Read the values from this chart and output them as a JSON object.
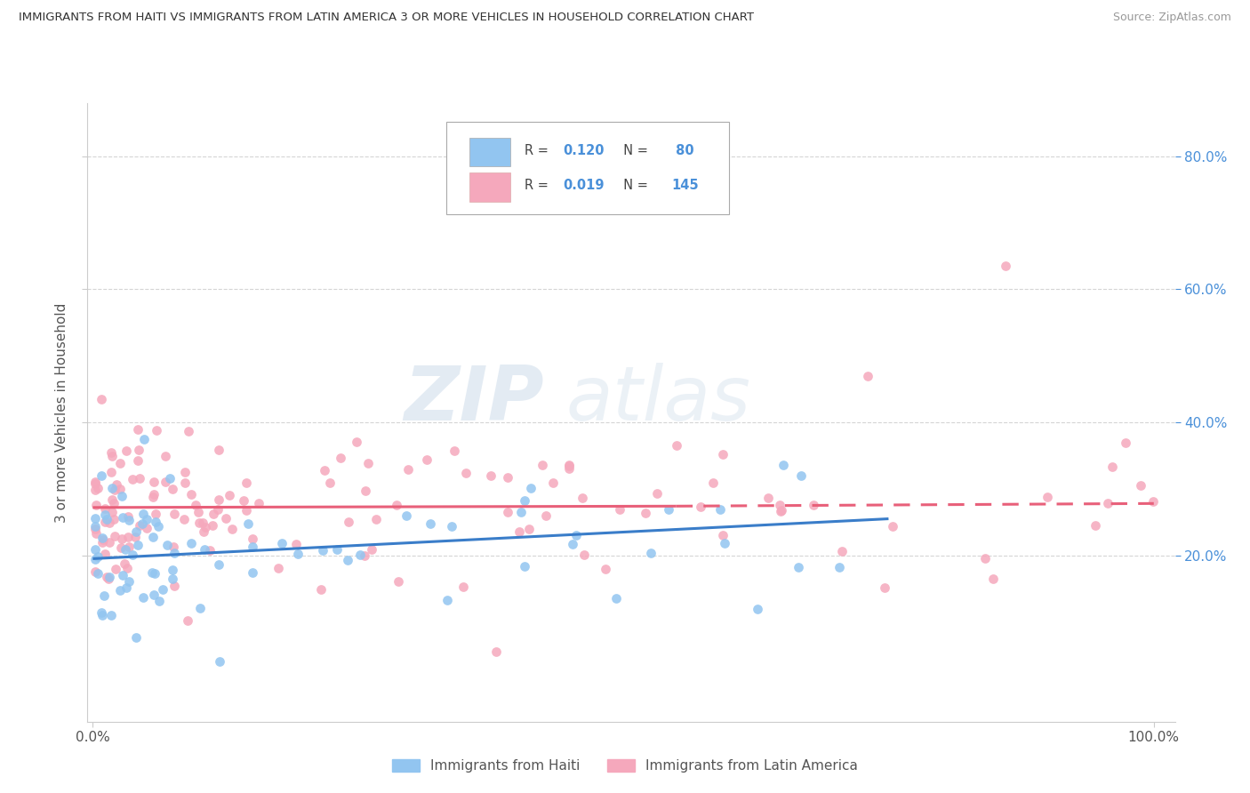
{
  "title": "IMMIGRANTS FROM HAITI VS IMMIGRANTS FROM LATIN AMERICA 3 OR MORE VEHICLES IN HOUSEHOLD CORRELATION CHART",
  "source": "Source: ZipAtlas.com",
  "ylabel": "3 or more Vehicles in Household",
  "xlim": [
    -0.005,
    1.02
  ],
  "ylim": [
    -0.05,
    0.88
  ],
  "ytick_positions": [
    0.2,
    0.4,
    0.6,
    0.8
  ],
  "ytick_labels": [
    "20.0%",
    "40.0%",
    "60.0%",
    "80.0%"
  ],
  "legend1_R": "0.120",
  "legend1_N": "80",
  "legend2_R": "0.019",
  "legend2_N": "145",
  "color_haiti": "#92C5F0",
  "color_latin": "#F5A8BC",
  "trendline_color_haiti": "#3A7DC9",
  "trendline_color_latin": "#E8607A",
  "watermark_zip": "ZIP",
  "watermark_atlas": "atlas",
  "background_color": "#ffffff",
  "grid_color": "#d5d5d5",
  "label_color_right": "#4A90D9",
  "label_color_left": "#aaaaaa"
}
